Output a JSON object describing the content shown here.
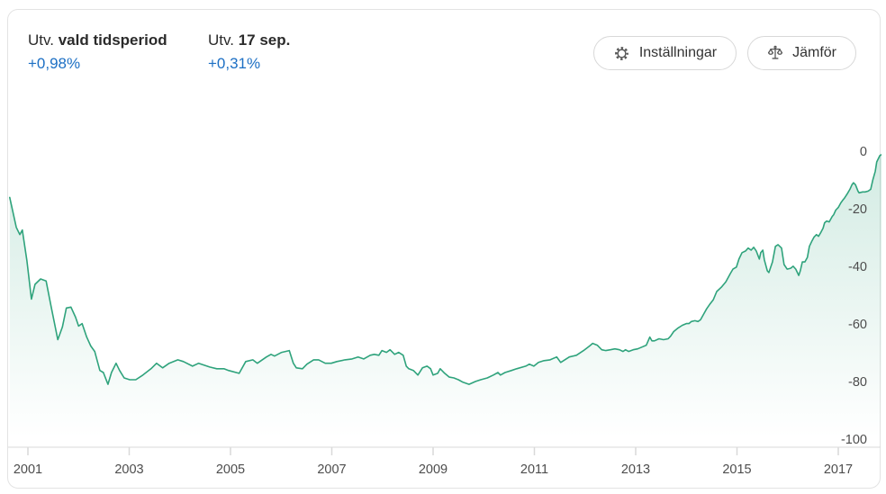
{
  "header": {
    "stat1": {
      "label_prefix": "Utv.",
      "label_bold": "vald tidsperiod",
      "value": "+0,98%"
    },
    "stat2": {
      "label_prefix": "Utv.",
      "label_bold": "17 sep.",
      "value": "+0,31%"
    },
    "buttons": [
      {
        "label": "Inställningar",
        "icon": "gear-icon"
      },
      {
        "label": "Jämför",
        "icon": "scale-icon"
      }
    ]
  },
  "colors": {
    "line": "#2fa37c",
    "fill_top_opacity": 0.22,
    "accent_blue": "#1c6fc4",
    "text_dark": "#2b2b2b",
    "axis_text": "#4d4d4d",
    "axis_line": "#d9d9d9",
    "card_border": "#e3e3e3",
    "icon_gray": "#555555"
  },
  "chart_data": {
    "type": "line",
    "title": "",
    "xlabel": "",
    "ylabel": "",
    "grid": false,
    "axis_side": "right",
    "x_ticks": [
      2001,
      2003,
      2005,
      2007,
      2009,
      2011,
      2013,
      2015,
      2017
    ],
    "y_ticks": [
      0,
      -20,
      -40,
      -60,
      -80,
      -100
    ],
    "ylim": [
      -100,
      0
    ],
    "xlim": [
      2000.6,
      2017.95
    ],
    "series": [
      {
        "name": "Utv. %",
        "points": [
          [
            2000.64,
            -14.5
          ],
          [
            2000.77,
            -24.9
          ],
          [
            2000.84,
            -27.4
          ],
          [
            2000.89,
            -25.8
          ],
          [
            2000.98,
            -36.5
          ],
          [
            2001.07,
            -49.8
          ],
          [
            2001.14,
            -44.7
          ],
          [
            2001.25,
            -42.8
          ],
          [
            2001.36,
            -43.5
          ],
          [
            2001.46,
            -52.6
          ],
          [
            2001.59,
            -63.9
          ],
          [
            2001.68,
            -59.5
          ],
          [
            2001.76,
            -52.9
          ],
          [
            2001.85,
            -52.6
          ],
          [
            2001.94,
            -56.1
          ],
          [
            2002.0,
            -59.2
          ],
          [
            2002.07,
            -58.3
          ],
          [
            2002.16,
            -63.0
          ],
          [
            2002.24,
            -66.1
          ],
          [
            2002.32,
            -68.0
          ],
          [
            2002.42,
            -74.6
          ],
          [
            2002.49,
            -75.3
          ],
          [
            2002.58,
            -79.4
          ],
          [
            2002.65,
            -75.3
          ],
          [
            2002.74,
            -72.1
          ],
          [
            2002.81,
            -74.6
          ],
          [
            2002.9,
            -77.2
          ],
          [
            2003.01,
            -77.8
          ],
          [
            2003.13,
            -77.8
          ],
          [
            2003.27,
            -76.2
          ],
          [
            2003.43,
            -74.0
          ],
          [
            2003.54,
            -72.1
          ],
          [
            2003.66,
            -73.7
          ],
          [
            2003.79,
            -72.1
          ],
          [
            2003.96,
            -70.9
          ],
          [
            2004.07,
            -71.5
          ],
          [
            2004.25,
            -73.1
          ],
          [
            2004.37,
            -72.1
          ],
          [
            2004.59,
            -73.4
          ],
          [
            2004.73,
            -74.0
          ],
          [
            2004.87,
            -74.0
          ],
          [
            2004.96,
            -74.6
          ],
          [
            2005.17,
            -75.6
          ],
          [
            2005.3,
            -71.5
          ],
          [
            2005.44,
            -70.9
          ],
          [
            2005.53,
            -72.1
          ],
          [
            2005.71,
            -69.9
          ],
          [
            2005.8,
            -69.0
          ],
          [
            2005.87,
            -69.6
          ],
          [
            2006.01,
            -68.3
          ],
          [
            2006.16,
            -67.7
          ],
          [
            2006.24,
            -72.1
          ],
          [
            2006.3,
            -73.7
          ],
          [
            2006.42,
            -74.0
          ],
          [
            2006.51,
            -72.4
          ],
          [
            2006.64,
            -70.9
          ],
          [
            2006.74,
            -70.9
          ],
          [
            2006.87,
            -72.1
          ],
          [
            2006.99,
            -72.1
          ],
          [
            2007.1,
            -71.5
          ],
          [
            2007.26,
            -70.9
          ],
          [
            2007.4,
            -70.6
          ],
          [
            2007.52,
            -69.9
          ],
          [
            2007.63,
            -70.6
          ],
          [
            2007.76,
            -69.3
          ],
          [
            2007.84,
            -69.0
          ],
          [
            2007.93,
            -69.3
          ],
          [
            2007.99,
            -67.7
          ],
          [
            2008.08,
            -68.3
          ],
          [
            2008.15,
            -67.4
          ],
          [
            2008.24,
            -69.0
          ],
          [
            2008.32,
            -68.3
          ],
          [
            2008.41,
            -69.3
          ],
          [
            2008.47,
            -73.1
          ],
          [
            2008.52,
            -74.0
          ],
          [
            2008.61,
            -74.6
          ],
          [
            2008.7,
            -76.2
          ],
          [
            2008.79,
            -73.7
          ],
          [
            2008.88,
            -73.1
          ],
          [
            2008.95,
            -74.0
          ],
          [
            2009.0,
            -76.2
          ],
          [
            2009.09,
            -75.6
          ],
          [
            2009.14,
            -74.0
          ],
          [
            2009.23,
            -75.6
          ],
          [
            2009.32,
            -76.9
          ],
          [
            2009.41,
            -77.2
          ],
          [
            2009.5,
            -77.8
          ],
          [
            2009.59,
            -78.7
          ],
          [
            2009.71,
            -79.4
          ],
          [
            2009.84,
            -78.4
          ],
          [
            2009.94,
            -77.8
          ],
          [
            2010.07,
            -77.2
          ],
          [
            2010.19,
            -76.2
          ],
          [
            2010.28,
            -75.3
          ],
          [
            2010.33,
            -76.2
          ],
          [
            2010.42,
            -75.3
          ],
          [
            2010.55,
            -74.6
          ],
          [
            2010.65,
            -74.0
          ],
          [
            2010.83,
            -73.1
          ],
          [
            2010.9,
            -72.4
          ],
          [
            2010.99,
            -73.1
          ],
          [
            2011.08,
            -71.8
          ],
          [
            2011.19,
            -71.2
          ],
          [
            2011.31,
            -70.9
          ],
          [
            2011.44,
            -69.9
          ],
          [
            2011.52,
            -71.8
          ],
          [
            2011.69,
            -69.9
          ],
          [
            2011.83,
            -69.3
          ],
          [
            2011.97,
            -67.7
          ],
          [
            2012.09,
            -66.1
          ],
          [
            2012.15,
            -65.2
          ],
          [
            2012.24,
            -65.8
          ],
          [
            2012.33,
            -67.4
          ],
          [
            2012.41,
            -67.7
          ],
          [
            2012.5,
            -67.4
          ],
          [
            2012.59,
            -67.1
          ],
          [
            2012.68,
            -67.4
          ],
          [
            2012.75,
            -68.0
          ],
          [
            2012.8,
            -67.4
          ],
          [
            2012.86,
            -68.0
          ],
          [
            2012.95,
            -67.4
          ],
          [
            2013.04,
            -67.1
          ],
          [
            2013.12,
            -66.5
          ],
          [
            2013.21,
            -65.8
          ],
          [
            2013.28,
            -63.0
          ],
          [
            2013.32,
            -64.3
          ],
          [
            2013.37,
            -64.3
          ],
          [
            2013.46,
            -63.6
          ],
          [
            2013.55,
            -63.9
          ],
          [
            2013.64,
            -63.6
          ],
          [
            2013.69,
            -62.7
          ],
          [
            2013.75,
            -61.1
          ],
          [
            2013.84,
            -59.8
          ],
          [
            2013.92,
            -58.9
          ],
          [
            2014.0,
            -58.3
          ],
          [
            2014.05,
            -58.3
          ],
          [
            2014.1,
            -57.6
          ],
          [
            2014.17,
            -57.3
          ],
          [
            2014.23,
            -57.6
          ],
          [
            2014.28,
            -57.0
          ],
          [
            2014.35,
            -54.8
          ],
          [
            2014.4,
            -53.2
          ],
          [
            2014.46,
            -51.7
          ],
          [
            2014.53,
            -50.1
          ],
          [
            2014.6,
            -47.2
          ],
          [
            2014.69,
            -45.7
          ],
          [
            2014.78,
            -43.8
          ],
          [
            2014.87,
            -40.9
          ],
          [
            2014.92,
            -39.4
          ],
          [
            2014.99,
            -38.7
          ],
          [
            2015.04,
            -35.9
          ],
          [
            2015.1,
            -33.7
          ],
          [
            2015.17,
            -33.1
          ],
          [
            2015.22,
            -32.1
          ],
          [
            2015.28,
            -32.8
          ],
          [
            2015.33,
            -31.8
          ],
          [
            2015.38,
            -33.1
          ],
          [
            2015.44,
            -35.9
          ],
          [
            2015.47,
            -33.7
          ],
          [
            2015.51,
            -32.8
          ],
          [
            2015.54,
            -36.2
          ],
          [
            2015.6,
            -40.0
          ],
          [
            2015.63,
            -40.6
          ],
          [
            2015.7,
            -36.9
          ],
          [
            2015.76,
            -31.5
          ],
          [
            2015.81,
            -30.9
          ],
          [
            2015.88,
            -32.1
          ],
          [
            2015.93,
            -37.8
          ],
          [
            2015.99,
            -39.4
          ],
          [
            2016.06,
            -39.1
          ],
          [
            2016.11,
            -38.4
          ],
          [
            2016.16,
            -39.4
          ],
          [
            2016.22,
            -41.6
          ],
          [
            2016.25,
            -40.0
          ],
          [
            2016.29,
            -36.9
          ],
          [
            2016.34,
            -36.9
          ],
          [
            2016.39,
            -35.3
          ],
          [
            2016.43,
            -31.5
          ],
          [
            2016.48,
            -29.6
          ],
          [
            2016.52,
            -28.3
          ],
          [
            2016.57,
            -27.4
          ],
          [
            2016.61,
            -28.0
          ],
          [
            2016.66,
            -26.5
          ],
          [
            2016.7,
            -25.2
          ],
          [
            2016.73,
            -23.3
          ],
          [
            2016.77,
            -22.7
          ],
          [
            2016.82,
            -23.0
          ],
          [
            2016.88,
            -21.1
          ],
          [
            2016.91,
            -20.5
          ],
          [
            2016.95,
            -18.9
          ],
          [
            2017.0,
            -18.0
          ],
          [
            2017.05,
            -16.4
          ],
          [
            2017.09,
            -15.4
          ],
          [
            2017.12,
            -14.8
          ],
          [
            2017.18,
            -13.2
          ],
          [
            2017.23,
            -11.7
          ],
          [
            2017.27,
            -10.1
          ],
          [
            2017.3,
            -9.4
          ],
          [
            2017.34,
            -10.1
          ],
          [
            2017.39,
            -12.3
          ],
          [
            2017.41,
            -12.9
          ],
          [
            2017.48,
            -12.6
          ],
          [
            2017.53,
            -12.6
          ],
          [
            2017.59,
            -12.3
          ],
          [
            2017.64,
            -11.7
          ],
          [
            2017.68,
            -8.5
          ],
          [
            2017.73,
            -5.4
          ],
          [
            2017.76,
            -2.2
          ],
          [
            2017.82,
            0.0
          ],
          [
            2017.85,
            0.3
          ],
          [
            2017.89,
            0.6
          ]
        ]
      }
    ]
  }
}
